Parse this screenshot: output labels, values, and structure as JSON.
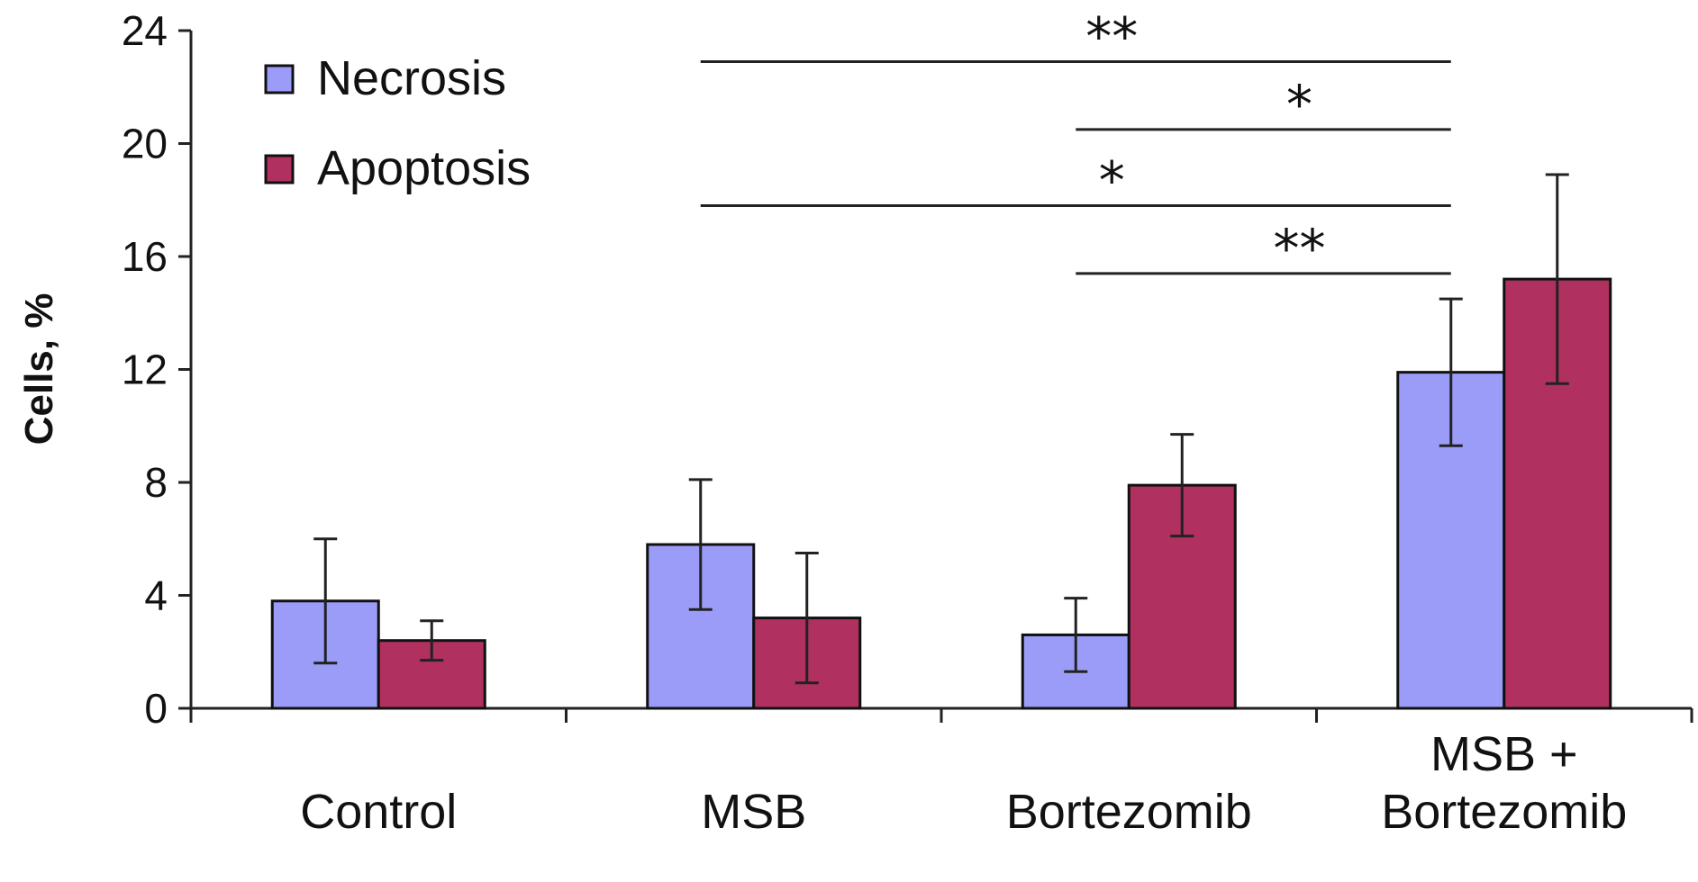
{
  "chart_data": {
    "type": "bar",
    "title": "",
    "xlabel": "",
    "ylabel": "Cells, %",
    "ylim": [
      0,
      24
    ],
    "yticks": [
      0,
      4,
      8,
      12,
      16,
      20,
      24
    ],
    "ytick_labels": [
      "0",
      "4",
      "8",
      "12",
      "16",
      "20",
      "24"
    ],
    "categories": [
      "Control",
      "MSB",
      "Bortezomib",
      "MSB + Bortezomib"
    ],
    "category_label_lines": [
      [
        "Control"
      ],
      [
        "MSB"
      ],
      [
        "Bortezomib"
      ],
      [
        "MSB  +",
        "Bortezomib"
      ]
    ],
    "series": [
      {
        "name": "Necrosis",
        "color": "#9b9cf8",
        "values": [
          3.8,
          5.8,
          2.6,
          11.9
        ],
        "errors": [
          2.2,
          2.3,
          1.3,
          2.6
        ]
      },
      {
        "name": "Apoptosis",
        "color": "#b03060",
        "values": [
          2.4,
          3.2,
          7.9,
          15.2
        ],
        "errors": [
          0.7,
          2.3,
          1.8,
          3.7
        ]
      }
    ],
    "legend_position": "top-left",
    "significance": [
      {
        "label": "**",
        "from": "MSB",
        "to": "MSB + Bortezomib",
        "y": 22.9
      },
      {
        "label": "*",
        "from": "Bortezomib",
        "to": "MSB + Bortezomib",
        "y": 20.5
      },
      {
        "label": "*",
        "from": "MSB",
        "to": "MSB + Bortezomib",
        "y": 17.8
      },
      {
        "label": "**",
        "from": "Bortezomib",
        "to": "MSB + Bortezomib",
        "y": 15.4
      }
    ]
  }
}
